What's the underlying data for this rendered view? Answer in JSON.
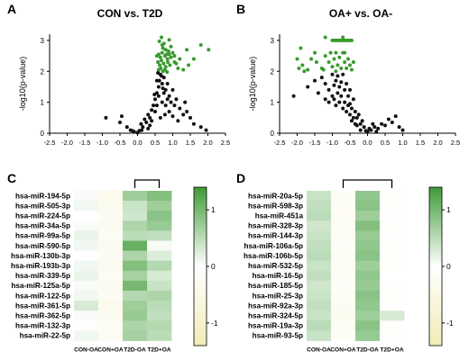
{
  "panels": {
    "A": {
      "letter": "A",
      "title": "CON vs. T2D"
    },
    "B": {
      "letter": "B",
      "title": "OA+ vs. OA-"
    },
    "C": {
      "letter": "C"
    },
    "D": {
      "letter": "D"
    }
  },
  "colors": {
    "significant": "#3a9a2f",
    "nonsignificant": "#111111",
    "heat_high": "#3f9c37",
    "heat_mid": "#ffffff",
    "heat_low": "#f2ecb6"
  },
  "chart_data": [
    {
      "type": "scatter",
      "title": "CON vs. T2D",
      "ylabel": "-log10(p-value)",
      "xlim": [
        -2.5,
        2.5
      ],
      "ylim": [
        0,
        3.2
      ],
      "x_ticks": [
        "-2.5",
        "-2.0",
        "-1.5",
        "-1.0",
        "-0.5",
        "0.0",
        "0.5",
        "1.0",
        "1.5",
        "2.0",
        "2.5"
      ],
      "y_ticks": [
        "0",
        "1",
        "2",
        "3"
      ],
      "series": [
        {
          "color": "#3a9a2f",
          "points": [
            [
              0.62,
              2.97
            ],
            [
              0.68,
              3.1
            ],
            [
              0.75,
              2.9
            ],
            [
              0.9,
              3.02
            ],
            [
              0.72,
              2.75
            ],
            [
              0.8,
              2.7
            ],
            [
              0.95,
              2.8
            ],
            [
              0.6,
              2.55
            ],
            [
              0.65,
              2.45
            ],
            [
              0.7,
              2.6
            ],
            [
              0.78,
              2.5
            ],
            [
              0.85,
              2.4
            ],
            [
              0.9,
              2.55
            ],
            [
              1.0,
              2.6
            ],
            [
              0.58,
              2.3
            ],
            [
              0.63,
              2.2
            ],
            [
              0.68,
              2.35
            ],
            [
              0.74,
              2.25
            ],
            [
              0.8,
              2.15
            ],
            [
              0.86,
              2.3
            ],
            [
              0.92,
              2.2
            ],
            [
              0.6,
              2.05
            ],
            [
              0.66,
              2.1
            ],
            [
              0.72,
              2.0
            ],
            [
              0.78,
              2.05
            ],
            [
              0.84,
              1.98
            ],
            [
              1.05,
              2.3
            ],
            [
              1.2,
              2.4
            ],
            [
              1.3,
              2.05
            ],
            [
              1.45,
              2.2
            ],
            [
              1.6,
              2.4
            ],
            [
              1.8,
              2.85
            ],
            [
              2.02,
              2.7
            ],
            [
              1.15,
              2.1
            ],
            [
              1.05,
              2.5
            ],
            [
              0.95,
              2.45
            ],
            [
              0.55,
              2.5
            ],
            [
              0.7,
              2.85
            ],
            [
              0.82,
              2.55
            ],
            [
              1.4,
              2.7
            ],
            [
              0.88,
              2.65
            ],
            [
              1.1,
              2.25
            ]
          ]
        },
        {
          "color": "#111111",
          "points": [
            [
              -0.9,
              0.5
            ],
            [
              -0.5,
              0.35
            ],
            [
              -0.45,
              0.55
            ],
            [
              -0.3,
              0.2
            ],
            [
              -0.2,
              0.1
            ],
            [
              -0.1,
              0.05
            ],
            [
              0.0,
              0.02
            ],
            [
              0.05,
              0.08
            ],
            [
              0.1,
              0.3
            ],
            [
              0.15,
              0.2
            ],
            [
              0.2,
              0.45
            ],
            [
              0.25,
              0.35
            ],
            [
              0.3,
              0.6
            ],
            [
              0.35,
              0.5
            ],
            [
              0.4,
              0.75
            ],
            [
              0.45,
              0.9
            ],
            [
              0.5,
              1.1
            ],
            [
              0.55,
              1.3
            ],
            [
              0.6,
              1.5
            ],
            [
              0.62,
              1.7
            ],
            [
              0.65,
              1.9
            ],
            [
              0.7,
              1.6
            ],
            [
              0.75,
              1.8
            ],
            [
              0.8,
              1.4
            ],
            [
              0.85,
              1.6
            ],
            [
              0.9,
              1.2
            ],
            [
              0.95,
              1.0
            ],
            [
              1.0,
              1.4
            ],
            [
              1.05,
              0.9
            ],
            [
              1.1,
              1.1
            ],
            [
              1.2,
              0.8
            ],
            [
              1.3,
              0.6
            ],
            [
              1.35,
              1.0
            ],
            [
              1.4,
              0.7
            ],
            [
              1.5,
              0.5
            ],
            [
              1.6,
              0.3
            ],
            [
              1.8,
              0.2
            ],
            [
              1.95,
              0.1
            ],
            [
              0.5,
              0.7
            ],
            [
              0.55,
              0.9
            ],
            [
              0.6,
              1.2
            ],
            [
              0.7,
              1.0
            ],
            [
              0.75,
              1.3
            ],
            [
              0.8,
              0.9
            ],
            [
              0.85,
              1.1
            ],
            [
              0.9,
              0.7
            ],
            [
              0.65,
              0.5
            ],
            [
              0.4,
              0.4
            ],
            [
              0.3,
              0.15
            ],
            [
              0.55,
              1.7
            ],
            [
              0.68,
              1.85
            ],
            [
              0.58,
              1.95
            ],
            [
              0.72,
              1.45
            ],
            [
              1.0,
              0.55
            ],
            [
              1.15,
              0.4
            ],
            [
              0.35,
              0.25
            ],
            [
              -0.15,
              0.08
            ],
            [
              0.12,
              0.1
            ],
            [
              0.48,
              1.25
            ],
            [
              0.78,
              0.6
            ]
          ]
        }
      ]
    },
    {
      "type": "scatter",
      "title": "OA+ vs. OA-",
      "ylabel": "-log10(p-value)",
      "xlim": [
        -2.5,
        2.5
      ],
      "ylim": [
        0,
        3.2
      ],
      "x_ticks": [
        "-2.5",
        "-2.0",
        "-1.5",
        "-1.0",
        "-0.5",
        "0.0",
        "0.5",
        "1.0",
        "1.5",
        "2.0",
        "2.5"
      ],
      "y_ticks": [
        "0",
        "1",
        "2",
        "3"
      ],
      "series": [
        {
          "color": "#3a9a2f",
          "points": [
            [
              -1.0,
              3.0
            ],
            [
              -0.95,
              3.0
            ],
            [
              -0.9,
              3.0
            ],
            [
              -0.85,
              3.0
            ],
            [
              -0.8,
              3.0
            ],
            [
              -0.75,
              3.0
            ],
            [
              -0.7,
              3.0
            ],
            [
              -0.65,
              3.0
            ],
            [
              -0.6,
              3.0
            ],
            [
              -0.55,
              3.0
            ],
            [
              -0.5,
              3.0
            ],
            [
              -0.45,
              3.0
            ],
            [
              -1.2,
              3.1
            ],
            [
              -0.7,
              3.1
            ],
            [
              -1.9,
              2.75
            ],
            [
              -2.0,
              2.4
            ],
            [
              -1.95,
              2.1
            ],
            [
              -1.85,
              2.2
            ],
            [
              -1.7,
              2.05
            ],
            [
              -1.6,
              2.4
            ],
            [
              -1.5,
              2.6
            ],
            [
              -1.45,
              2.3
            ],
            [
              -1.3,
              2.1
            ],
            [
              -1.2,
              2.5
            ],
            [
              -1.1,
              2.3
            ],
            [
              -1.05,
              2.6
            ],
            [
              -1.0,
              2.15
            ],
            [
              -0.95,
              2.4
            ],
            [
              -0.9,
              2.6
            ],
            [
              -0.85,
              2.2
            ],
            [
              -0.8,
              2.45
            ],
            [
              -0.75,
              2.1
            ],
            [
              -0.7,
              2.6
            ],
            [
              -0.65,
              2.3
            ],
            [
              -0.6,
              2.1
            ],
            [
              -0.55,
              2.4
            ],
            [
              -0.5,
              2.2
            ],
            [
              -0.45,
              2.05
            ],
            [
              -0.4,
              2.3
            ],
            [
              -1.8,
              2.0
            ],
            [
              -1.25,
              2.05
            ],
            [
              -0.9,
              2.0
            ],
            [
              -0.65,
              2.6
            ]
          ]
        },
        {
          "color": "#111111",
          "points": [
            [
              -2.1,
              1.2
            ],
            [
              -1.7,
              1.5
            ],
            [
              -1.5,
              1.7
            ],
            [
              -1.4,
              1.3
            ],
            [
              -1.3,
              1.8
            ],
            [
              -1.2,
              1.6
            ],
            [
              -1.1,
              1.4
            ],
            [
              -1.0,
              1.9
            ],
            [
              -0.95,
              1.1
            ],
            [
              -0.9,
              1.7
            ],
            [
              -0.85,
              1.3
            ],
            [
              -0.8,
              1.5
            ],
            [
              -0.75,
              1.2
            ],
            [
              -0.7,
              1.9
            ],
            [
              -0.65,
              1.0
            ],
            [
              -0.6,
              1.6
            ],
            [
              -0.55,
              0.9
            ],
            [
              -0.5,
              1.4
            ],
            [
              -0.45,
              0.8
            ],
            [
              -0.4,
              1.1
            ],
            [
              -0.35,
              0.7
            ],
            [
              -0.3,
              0.5
            ],
            [
              -0.25,
              0.6
            ],
            [
              -0.2,
              0.3
            ],
            [
              -0.15,
              0.4
            ],
            [
              -0.1,
              0.2
            ],
            [
              0.0,
              0.05
            ],
            [
              0.1,
              0.1
            ],
            [
              0.15,
              0.3
            ],
            [
              0.2,
              0.2
            ],
            [
              0.3,
              0.15
            ],
            [
              0.4,
              0.3
            ],
            [
              0.5,
              0.25
            ],
            [
              0.6,
              0.45
            ],
            [
              0.7,
              0.35
            ],
            [
              0.8,
              0.55
            ],
            [
              0.9,
              0.2
            ],
            [
              1.0,
              0.1
            ],
            [
              -0.6,
              0.7
            ],
            [
              -0.5,
              0.6
            ],
            [
              -0.45,
              0.4
            ],
            [
              -0.4,
              0.5
            ],
            [
              -0.35,
              0.3
            ],
            [
              -0.3,
              0.25
            ],
            [
              -0.7,
              0.8
            ],
            [
              -0.8,
              1.0
            ],
            [
              -0.9,
              0.9
            ],
            [
              -1.0,
              1.2
            ],
            [
              -1.1,
              1.0
            ],
            [
              -0.55,
              1.2
            ],
            [
              -0.65,
              1.4
            ],
            [
              -0.75,
              1.65
            ],
            [
              -0.85,
              1.85
            ],
            [
              -0.2,
              0.1
            ],
            [
              0.05,
              0.15
            ],
            [
              0.25,
              0.05
            ],
            [
              -0.05,
              0.08
            ],
            [
              -1.2,
              1.1
            ],
            [
              -0.95,
              1.55
            ],
            [
              -0.5,
              0.95
            ]
          ]
        }
      ]
    },
    {
      "type": "heatmap",
      "rows": [
        "hsa-miR-194-5p",
        "hsa-miR-505-3p",
        "hsa-miR-224-5p",
        "hsa-miR-34a-5p",
        "hsa-miR-99a-5p",
        "hsa-miR-590-5p",
        "hsa-miR-130b-3p",
        "hsa-miR-193b-3p",
        "hsa-miR-339-5p",
        "hsa-miR-125a-5p",
        "hsa-miR-122-5p",
        "hsa-miR-361-5p",
        "hsa-miR-362-5p",
        "hsa-miR-132-3p",
        "hsa-miR-22-5p"
      ],
      "columns": [
        "CON-OA",
        "CON+OA",
        "T2D-OA",
        "T2D+OA"
      ],
      "colorbar_ticks": [
        "1",
        "0",
        "-1"
      ],
      "range": [
        -1.4,
        1.4
      ],
      "values": [
        [
          0.05,
          -0.35,
          0.7,
          0.9
        ],
        [
          0.1,
          -0.3,
          0.4,
          0.7
        ],
        [
          0.0,
          -0.25,
          0.35,
          0.85
        ],
        [
          0.05,
          -0.3,
          0.6,
          0.75
        ],
        [
          0.15,
          -0.2,
          0.5,
          0.45
        ],
        [
          0.1,
          -0.3,
          1.1,
          0.05
        ],
        [
          0.0,
          -0.25,
          0.6,
          0.25
        ],
        [
          0.1,
          -0.3,
          0.9,
          0.55
        ],
        [
          0.15,
          -0.2,
          0.65,
          0.3
        ],
        [
          0.05,
          -0.3,
          1.0,
          0.4
        ],
        [
          0.1,
          -0.25,
          0.55,
          0.6
        ],
        [
          0.3,
          -0.35,
          0.7,
          0.5
        ],
        [
          0.05,
          -0.3,
          0.75,
          0.45
        ],
        [
          -0.05,
          -0.2,
          0.6,
          0.55
        ],
        [
          0.1,
          -0.25,
          0.65,
          0.5
        ]
      ],
      "bracket": [
        "T2D-OA",
        "T2D+OA"
      ]
    },
    {
      "type": "heatmap",
      "rows": [
        "hsa-miR-20a-5p",
        "hsa-miR-598-3p",
        "hsa-miR-451a",
        "hsa-miR-328-3p",
        "hsa-miR-144-3p",
        "hsa-miR-106a-5p",
        "hsa-miR-106b-5p",
        "hsa-miR-532-5p",
        "hsa-miR-16-5p",
        "hsa-miR-185-5p",
        "hsa-miR-25-3p",
        "hsa-miR-92a-3p",
        "hsa-miR-324-5p",
        "hsa-miR-19a-3p",
        "hsa-miR-93-5p"
      ],
      "columns": [
        "CON-OA",
        "CON+OA",
        "T2D-OA",
        "T2D+OA"
      ],
      "colorbar_ticks": [
        "1",
        "0",
        "-1"
      ],
      "range": [
        -1.4,
        1.4
      ],
      "values": [
        [
          0.4,
          -0.2,
          0.8,
          -0.1
        ],
        [
          0.45,
          -0.15,
          0.85,
          -0.05
        ],
        [
          0.5,
          -0.2,
          0.7,
          0.0
        ],
        [
          0.35,
          -0.25,
          0.9,
          -0.1
        ],
        [
          0.4,
          -0.2,
          0.75,
          -0.05
        ],
        [
          0.45,
          -0.15,
          0.8,
          -0.1
        ],
        [
          0.5,
          -0.2,
          0.85,
          -0.05
        ],
        [
          0.4,
          -0.25,
          0.7,
          -0.1
        ],
        [
          0.45,
          -0.2,
          0.8,
          0.0
        ],
        [
          0.35,
          -0.15,
          0.75,
          -0.05
        ],
        [
          0.4,
          -0.2,
          0.85,
          -0.1
        ],
        [
          0.45,
          -0.25,
          0.8,
          -0.05
        ],
        [
          0.4,
          -0.3,
          0.7,
          0.3
        ],
        [
          0.5,
          -0.2,
          0.85,
          -0.1
        ],
        [
          0.4,
          -0.15,
          0.75,
          -0.05
        ]
      ],
      "bracket": [
        "CON+OA",
        "T2D+OA"
      ]
    }
  ]
}
